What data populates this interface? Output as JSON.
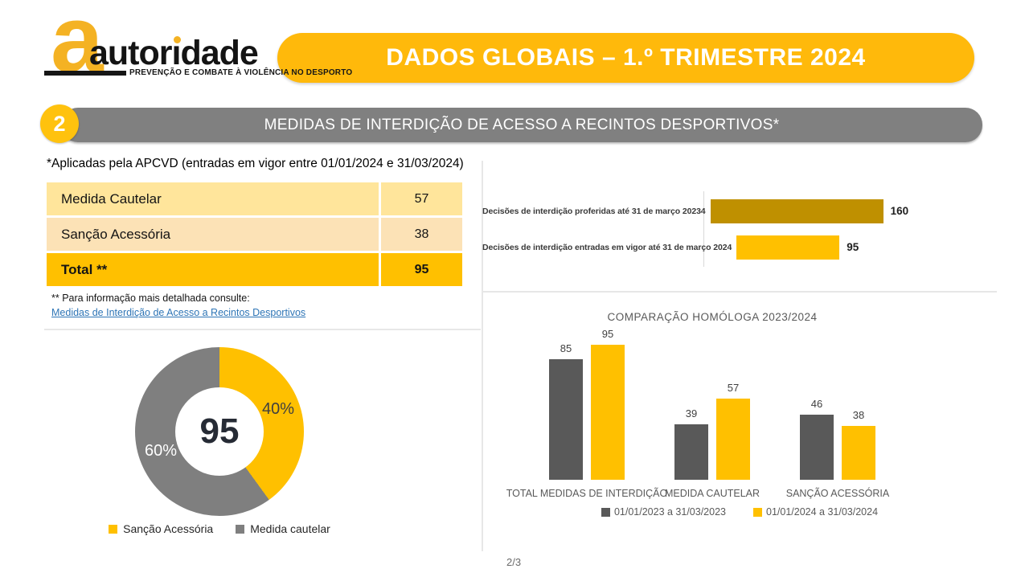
{
  "logo": {
    "big_a": "a",
    "wordmark": "autoridade",
    "tagline": "PREVENÇÃO E COMBATE À VIOLÊNCIA NO DESPORTO"
  },
  "header": {
    "title": "DADOS GLOBAIS – 1.º TRIMESTRE 2024",
    "banner_color": "#FFB90B"
  },
  "section": {
    "number": "2",
    "title": "MEDIDAS DE INTERDIÇÃO DE ACESSO A RECINTOS DESPORTIVOS*",
    "banner_color": "#808080",
    "badge_color": "#FFC20E"
  },
  "left": {
    "subtitle": "*Aplicadas pela APCVD (entradas em vigor entre 01/01/2024 e 31/03/2024)",
    "table": {
      "rows": [
        {
          "label": "Medida Cautelar",
          "value": "57",
          "bg": "#FFE59B",
          "bold": false
        },
        {
          "label": "Sanção Acessória",
          "value": "38",
          "bg": "#FCE2B6",
          "bold": false
        },
        {
          "label": "Total **",
          "value": "95",
          "bg": "#FFC000",
          "bold": true
        }
      ]
    },
    "footnote": "** Para informação mais detalhada consulte:",
    "link": "Medidas de Interdição de Acesso a Recintos Desportivos"
  },
  "chart_data": [
    {
      "type": "pie",
      "subtype": "donut",
      "center_total": "95",
      "slices": [
        {
          "label": "Sanção Acessória",
          "pct": 40,
          "pct_label": "40%",
          "color": "#FFC000"
        },
        {
          "label": "Medida cautelar",
          "pct": 60,
          "pct_label": "60%",
          "color": "#7F7F7F"
        }
      ],
      "legend_position": "bottom"
    },
    {
      "type": "bar",
      "orientation": "horizontal",
      "categories": [
        "Decisões de interdição proferidas até 31 de março 20234",
        "Decisões de interdição entradas em vigor até 31 de março 2024"
      ],
      "values": [
        160,
        95
      ],
      "colors": [
        "#BF9000",
        "#FFC000"
      ],
      "xlim": [
        0,
        160
      ],
      "data_labels": true
    },
    {
      "type": "bar",
      "orientation": "vertical",
      "title": "COMPARAÇÃO HOMÓLOGA 2023/2024",
      "categories": [
        "TOTAL MEDIDAS DE INTERDIÇÃO",
        "MEDIDA CAUTELAR",
        "SANÇÃO ACESSÓRIA"
      ],
      "series": [
        {
          "name": "01/01/2023 a 31/03/2023",
          "color": "#595959",
          "values": [
            85,
            39,
            46
          ]
        },
        {
          "name": "01/01/2024 a 31/03/2024",
          "color": "#FFC000",
          "values": [
            95,
            57,
            38
          ]
        }
      ],
      "ylim": [
        0,
        100
      ],
      "legend_position": "bottom",
      "data_labels": true
    }
  ],
  "footer": {
    "page": "2/3"
  }
}
